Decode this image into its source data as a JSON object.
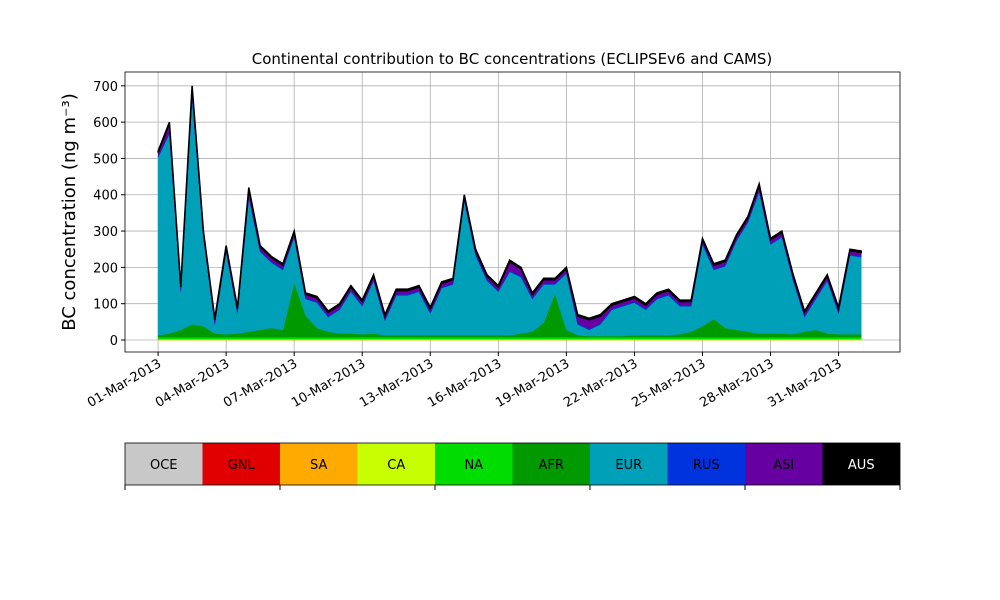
{
  "chart_data": {
    "type": "stacked_area",
    "title": "Continental contribution to BC concentrations (ECLIPSEv6 and CAMS)",
    "y_label": "BC concentration (ng m⁻³)",
    "x": [
      "2013-03-01T00:00",
      "2013-03-01T12:00",
      "2013-03-02T00:00",
      "2013-03-02T12:00",
      "2013-03-03T00:00",
      "2013-03-03T12:00",
      "2013-03-04T00:00",
      "2013-03-04T12:00",
      "2013-03-05T00:00",
      "2013-03-05T12:00",
      "2013-03-06T00:00",
      "2013-03-06T12:00",
      "2013-03-07T00:00",
      "2013-03-07T12:00",
      "2013-03-08T00:00",
      "2013-03-08T12:00",
      "2013-03-09T00:00",
      "2013-03-09T12:00",
      "2013-03-10T00:00",
      "2013-03-10T12:00",
      "2013-03-11T00:00",
      "2013-03-11T12:00",
      "2013-03-12T00:00",
      "2013-03-12T12:00",
      "2013-03-13T00:00",
      "2013-03-13T12:00",
      "2013-03-14T00:00",
      "2013-03-14T12:00",
      "2013-03-15T00:00",
      "2013-03-15T12:00",
      "2013-03-16T00:00",
      "2013-03-16T12:00",
      "2013-03-17T00:00",
      "2013-03-17T12:00",
      "2013-03-18T00:00",
      "2013-03-18T12:00",
      "2013-03-19T00:00",
      "2013-03-19T12:00",
      "2013-03-20T00:00",
      "2013-03-20T12:00",
      "2013-03-21T00:00",
      "2013-03-21T12:00",
      "2013-03-22T00:00",
      "2013-03-22T12:00",
      "2013-03-23T00:00",
      "2013-03-23T12:00",
      "2013-03-24T00:00",
      "2013-03-24T12:00",
      "2013-03-25T00:00",
      "2013-03-25T12:00",
      "2013-03-26T00:00",
      "2013-03-26T12:00",
      "2013-03-27T00:00",
      "2013-03-27T12:00",
      "2013-03-28T00:00",
      "2013-03-28T12:00",
      "2013-03-29T00:00",
      "2013-03-29T12:00",
      "2013-03-30T00:00",
      "2013-03-30T12:00",
      "2013-03-31T00:00",
      "2013-03-31T12:00",
      "2013-04-01T00:00"
    ],
    "series": [
      {
        "name": "OCE",
        "color": "#c8c8c8",
        "values": [
          0,
          0,
          0,
          0,
          0,
          0,
          0,
          0,
          0,
          0,
          0,
          0,
          0,
          0,
          0,
          0,
          0,
          0,
          0,
          0,
          0,
          0,
          0,
          0,
          0,
          0,
          0,
          0,
          0,
          0,
          0,
          0,
          0,
          0,
          0,
          0,
          0,
          0,
          0,
          0,
          0,
          0,
          0,
          0,
          0,
          0,
          0,
          0,
          0,
          0,
          0,
          0,
          0,
          0,
          0,
          0,
          0,
          0,
          0,
          0,
          0,
          0,
          0
        ]
      },
      {
        "name": "GNL",
        "color": "#e00000",
        "values": [
          0,
          0,
          0,
          0,
          0,
          0,
          0,
          0,
          0,
          0,
          0,
          0,
          0,
          0,
          0,
          0,
          0,
          0,
          0,
          0,
          0,
          0,
          0,
          0,
          0,
          0,
          0,
          0,
          0,
          0,
          0,
          0,
          0,
          0,
          0,
          0,
          0,
          0,
          0,
          0,
          0,
          0,
          0,
          0,
          0,
          0,
          0,
          0,
          0,
          0,
          0,
          0,
          0,
          0,
          0,
          0,
          0,
          0,
          0,
          0,
          0,
          0,
          0
        ]
      },
      {
        "name": "SA",
        "color": "#ffaa00",
        "values": [
          0,
          0,
          0,
          0,
          0,
          0,
          0,
          0,
          0,
          0,
          0,
          0,
          0,
          0,
          0,
          0,
          0,
          0,
          0,
          0,
          0,
          0,
          0,
          0,
          0,
          0,
          0,
          0,
          0,
          0,
          0,
          0,
          0,
          0,
          0,
          0,
          0,
          0,
          0,
          0,
          0,
          0,
          0,
          0,
          0,
          0,
          0,
          0,
          0,
          0,
          0,
          0,
          0,
          0,
          0,
          0,
          0,
          0,
          0,
          0,
          0,
          0,
          0
        ]
      },
      {
        "name": "CA",
        "color": "#c8ff00",
        "values": [
          2,
          2,
          2,
          2,
          2,
          2,
          2,
          2,
          2,
          2,
          2,
          2,
          2,
          2,
          2,
          2,
          2,
          2,
          2,
          2,
          2,
          2,
          2,
          2,
          2,
          2,
          2,
          2,
          2,
          2,
          2,
          2,
          2,
          2,
          2,
          2,
          2,
          2,
          2,
          2,
          2,
          2,
          2,
          2,
          2,
          2,
          2,
          2,
          2,
          2,
          2,
          2,
          2,
          2,
          2,
          2,
          2,
          2,
          2,
          2,
          2,
          2,
          2
        ]
      },
      {
        "name": "NA",
        "color": "#00dd00",
        "values": [
          6,
          6,
          6,
          6,
          6,
          6,
          6,
          6,
          6,
          6,
          6,
          6,
          6,
          6,
          6,
          6,
          6,
          6,
          6,
          6,
          6,
          6,
          6,
          6,
          6,
          6,
          6,
          6,
          6,
          6,
          6,
          6,
          6,
          6,
          6,
          6,
          6,
          6,
          6,
          6,
          6,
          6,
          6,
          6,
          6,
          6,
          6,
          6,
          6,
          6,
          6,
          6,
          6,
          6,
          6,
          6,
          6,
          6,
          6,
          6,
          6,
          6,
          6
        ]
      },
      {
        "name": "AFR",
        "color": "#009900",
        "values": [
          5,
          10,
          20,
          35,
          30,
          10,
          8,
          10,
          15,
          20,
          25,
          20,
          150,
          60,
          25,
          15,
          10,
          10,
          8,
          10,
          5,
          5,
          5,
          5,
          5,
          5,
          5,
          5,
          5,
          5,
          5,
          5,
          10,
          15,
          40,
          120,
          20,
          5,
          3,
          3,
          3,
          3,
          5,
          5,
          5,
          5,
          8,
          15,
          30,
          50,
          25,
          20,
          15,
          10,
          10,
          10,
          8,
          15,
          20,
          10,
          8,
          8,
          8
        ]
      },
      {
        "name": "EUR",
        "color": "#00a0b8",
        "values": [
          490,
          550,
          105,
          625,
          245,
          25,
          227,
          55,
          370,
          215,
          180,
          165,
          125,
          45,
          70,
          40,
          65,
          115,
          77,
          145,
          40,
          110,
          110,
          120,
          60,
          130,
          140,
          370,
          220,
          150,
          120,
          175,
          155,
          90,
          105,
          25,
          155,
          30,
          17,
          32,
          72,
          82,
          90,
          70,
          100,
          110,
          77,
          70,
          225,
          135,
          170,
          245,
          300,
          390,
          245,
          265,
          147,
          40,
          85,
          145,
          57,
          217,
          212
        ]
      },
      {
        "name": "RUS",
        "color": "#0033dd",
        "values": [
          3,
          3,
          3,
          3,
          3,
          3,
          3,
          3,
          3,
          3,
          3,
          3,
          3,
          3,
          3,
          3,
          3,
          3,
          3,
          3,
          3,
          3,
          3,
          3,
          3,
          3,
          3,
          3,
          3,
          3,
          3,
          3,
          3,
          3,
          3,
          3,
          3,
          3,
          3,
          3,
          3,
          3,
          3,
          3,
          3,
          3,
          3,
          3,
          3,
          3,
          3,
          3,
          3,
          3,
          3,
          3,
          3,
          3,
          3,
          3,
          3,
          3,
          3
        ]
      },
      {
        "name": "ASI",
        "color": "#6600a0",
        "values": [
          10,
          25,
          10,
          25,
          10,
          10,
          10,
          10,
          20,
          10,
          10,
          10,
          10,
          10,
          10,
          10,
          10,
          10,
          10,
          10,
          10,
          10,
          10,
          10,
          10,
          10,
          10,
          10,
          10,
          10,
          10,
          25,
          20,
          10,
          10,
          10,
          10,
          20,
          25,
          20,
          10,
          10,
          10,
          10,
          10,
          10,
          10,
          10,
          10,
          10,
          10,
          10,
          10,
          15,
          10,
          10,
          10,
          10,
          10,
          10,
          10,
          10,
          10
        ]
      },
      {
        "name": "AUS",
        "color": "#000000",
        "values": [
          4,
          4,
          4,
          4,
          4,
          4,
          4,
          4,
          4,
          4,
          4,
          4,
          4,
          4,
          4,
          4,
          4,
          4,
          4,
          4,
          4,
          4,
          4,
          4,
          4,
          4,
          4,
          4,
          4,
          4,
          4,
          4,
          4,
          4,
          4,
          4,
          4,
          4,
          4,
          4,
          4,
          4,
          4,
          4,
          4,
          4,
          4,
          4,
          4,
          4,
          4,
          4,
          4,
          4,
          4,
          4,
          4,
          4,
          4,
          4,
          4,
          4,
          4
        ]
      }
    ],
    "xlim": [
      "2013-02-27T13:00",
      "2013-04-02T17:00"
    ],
    "xticks": [
      {
        "value": "2013-03-01T00:00",
        "label": "01-Mar-2013"
      },
      {
        "value": "2013-03-04T00:00",
        "label": "04-Mar-2013"
      },
      {
        "value": "2013-03-07T00:00",
        "label": "07-Mar-2013"
      },
      {
        "value": "2013-03-10T00:00",
        "label": "10-Mar-2013"
      },
      {
        "value": "2013-03-13T00:00",
        "label": "13-Mar-2013"
      },
      {
        "value": "2013-03-16T00:00",
        "label": "16-Mar-2013"
      },
      {
        "value": "2013-03-19T00:00",
        "label": "19-Mar-2013"
      },
      {
        "value": "2013-03-22T00:00",
        "label": "22-Mar-2013"
      },
      {
        "value": "2013-03-25T00:00",
        "label": "25-Mar-2013"
      },
      {
        "value": "2013-03-28T00:00",
        "label": "28-Mar-2013"
      },
      {
        "value": "2013-03-31T00:00",
        "label": "31-Mar-2013"
      }
    ],
    "ylim": [
      -33,
      738
    ],
    "yticks": [
      0,
      100,
      200,
      300,
      400,
      500,
      600,
      700
    ],
    "grid": true
  }
}
